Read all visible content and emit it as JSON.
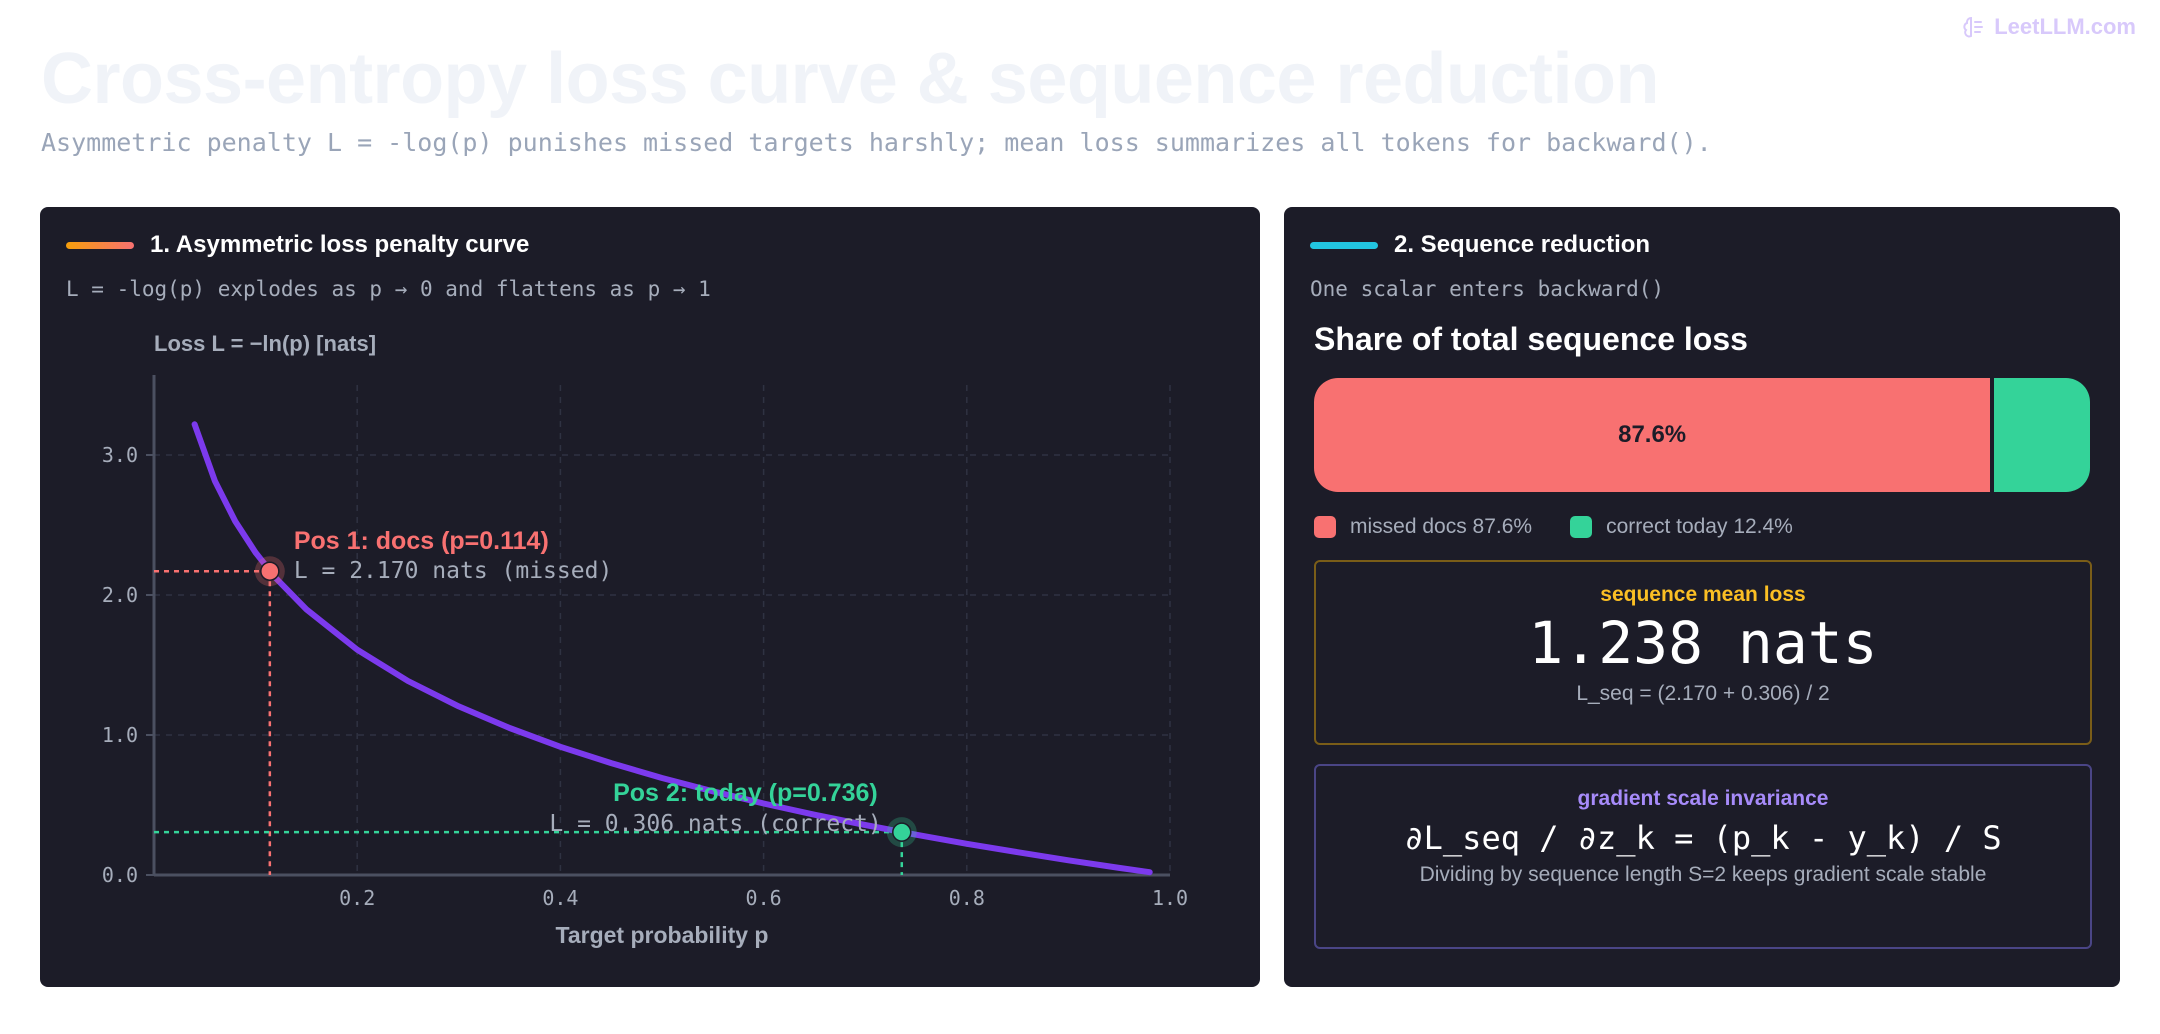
{
  "brand": {
    "text": "LeetLLM.com"
  },
  "header": {
    "title": "Cross-entropy loss curve & sequence reduction",
    "subtitle": "Asymmetric penalty L = -log(p) punishes missed targets harshly; mean loss summarizes all tokens for backward()."
  },
  "left_panel": {
    "heading": "1. Asymmetric loss penalty curve",
    "subheading": "L = -log(p) explodes as p → 0 and flattens as p → 1"
  },
  "right_panel": {
    "heading": "2. Sequence reduction",
    "subheading": "One scalar enters backward()",
    "share_title": "Share of total sequence loss",
    "share": {
      "missed_fraction": 0.876,
      "correct_fraction": 0.124,
      "bar_label": "87.6%",
      "legend_missed": "missed docs 87.6%",
      "legend_correct": "correct today 12.4%"
    },
    "mean_box": {
      "label": "sequence mean loss",
      "value": "1.238 nats",
      "formula": "L_seq = (2.170 + 0.306) / 2"
    },
    "grad_box": {
      "label": "gradient scale invariance",
      "formula": "∂L_seq / ∂z_k = (p_k - y_k) / S",
      "note": "Dividing by sequence length S=2 keeps gradient scale stable"
    }
  },
  "colors": {
    "curve": "#7c3aed",
    "missed": "#f87171",
    "correct": "#34d399",
    "mean_label": "#fbbf24",
    "grad_label": "#a78bfa"
  },
  "chart_data": {
    "type": "line",
    "title": "",
    "xlabel": "Target probability p",
    "ylabel": "Loss L = −ln(p) [nats]",
    "xlim": [
      0,
      1.0
    ],
    "ylim": [
      0,
      3.5
    ],
    "xticks": [
      0.2,
      0.4,
      0.6,
      0.8,
      1.0
    ],
    "xtick_labels": [
      "0.2",
      "0.4",
      "0.6",
      "0.8",
      "1.0"
    ],
    "yticks": [
      0,
      1,
      2,
      3
    ],
    "ytick_labels": [
      "0.0",
      "1.0",
      "2.0",
      "3.0"
    ],
    "grid": true,
    "series": [
      {
        "function": "-ln(p)",
        "x": [
          0.04,
          0.06,
          0.08,
          0.1,
          0.12,
          0.15,
          0.2,
          0.25,
          0.3,
          0.35,
          0.4,
          0.45,
          0.5,
          0.55,
          0.6,
          0.65,
          0.7,
          0.75,
          0.8,
          0.85,
          0.9,
          0.95,
          0.98
        ],
        "y": [
          3.219,
          2.813,
          2.526,
          2.303,
          2.12,
          1.897,
          1.609,
          1.386,
          1.204,
          1.05,
          0.916,
          0.799,
          0.693,
          0.598,
          0.511,
          0.431,
          0.357,
          0.288,
          0.223,
          0.163,
          0.105,
          0.051,
          0.02
        ]
      }
    ],
    "annotations": [
      {
        "x": 0.114,
        "y": 2.17,
        "title": "Pos 1: docs (p=0.114)",
        "text": "L = 2.170 nats (missed)",
        "status": "missed"
      },
      {
        "x": 0.736,
        "y": 0.306,
        "title": "Pos 2: today (p=0.736)",
        "text": "L = 0.306 nats (correct)",
        "status": "correct"
      }
    ]
  }
}
